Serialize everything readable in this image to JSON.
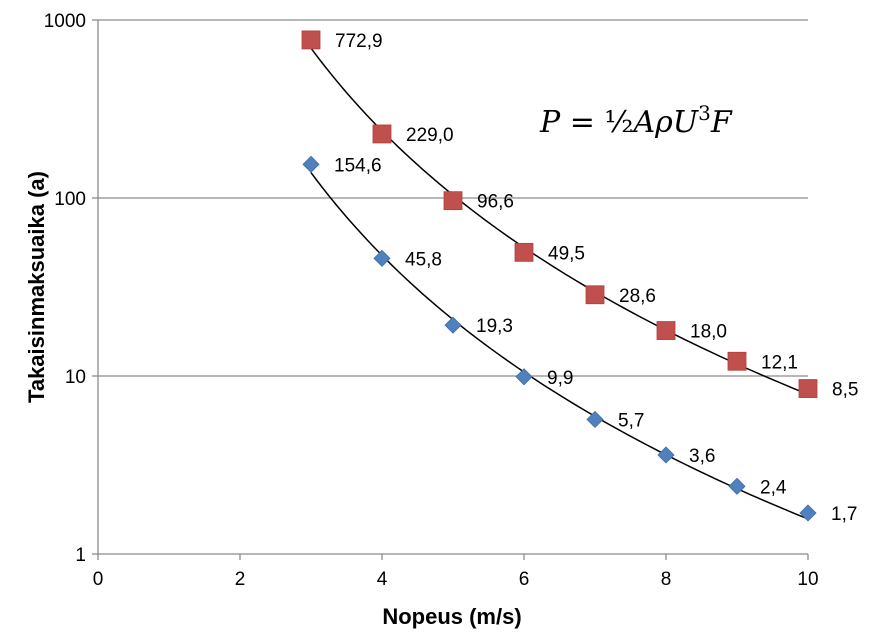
{
  "chart_data": {
    "type": "scatter",
    "xlabel": "Nopeus (m/s)",
    "ylabel": "Takaisinmaksuaika (a)",
    "xlim": [
      0,
      10
    ],
    "ylim": [
      1,
      1000
    ],
    "y_scale": "log",
    "x_ticks": [
      0,
      2,
      4,
      6,
      8,
      10
    ],
    "x_tick_labels": [
      "0",
      "2",
      "4",
      "6",
      "8",
      "10"
    ],
    "y_ticks": [
      1,
      10,
      100,
      1000
    ],
    "y_tick_labels": [
      "1",
      "10",
      "100",
      "1000"
    ],
    "grid": "horizontal major gridlines",
    "legend": "none",
    "annotation": {
      "parts": [
        "P",
        " = ",
        "½",
        "A",
        "ρ",
        "U",
        "3",
        "F"
      ]
    },
    "series": [
      {
        "marker": "square",
        "color": "#c0504d",
        "trendline": true,
        "x": [
          3,
          4,
          5,
          6,
          7,
          8,
          9,
          10
        ],
        "y": [
          772.9,
          229.0,
          96.6,
          49.5,
          28.6,
          18.0,
          12.1,
          8.5
        ],
        "labels": [
          "772,9",
          "229,0",
          "96,6",
          "49,5",
          "28,6",
          "18,0",
          "12,1",
          "8,5"
        ]
      },
      {
        "marker": "diamond",
        "color": "#4f81bd",
        "trendline": true,
        "x": [
          3,
          4,
          5,
          6,
          7,
          8,
          9,
          10
        ],
        "y": [
          154.6,
          45.8,
          19.3,
          9.9,
          5.7,
          3.6,
          2.4,
          1.7
        ],
        "labels": [
          "154,6",
          "45,8",
          "19,3",
          "9,9",
          "5,7",
          "3,6",
          "2,4",
          "1,7"
        ]
      }
    ]
  }
}
